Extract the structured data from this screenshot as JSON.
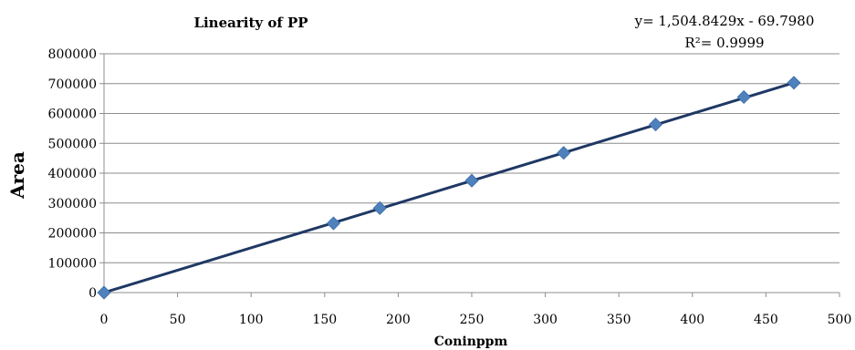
{
  "chart_data": {
    "type": "scatter",
    "title": "Linearity of PP",
    "xlabel": "Coninppm",
    "ylabel": "Area",
    "xlim": [
      0,
      500
    ],
    "ylim": [
      0,
      800000
    ],
    "x_ticks": [
      "0",
      "50",
      "100",
      "150",
      "200",
      "250",
      "300",
      "350",
      "400",
      "450",
      "500"
    ],
    "y_ticks": [
      "0",
      "100000",
      "200000",
      "300000",
      "400000",
      "500000",
      "600000",
      "700000",
      "800000"
    ],
    "grid": "horizontal",
    "series": [
      {
        "x": [
          0,
          156,
          187.5,
          250,
          312.5,
          375,
          435,
          469
        ],
        "y": [
          0,
          232000,
          283000,
          375000,
          468000,
          563000,
          655000,
          703000
        ],
        "marker": "diamond",
        "color": "#4F81BD"
      }
    ],
    "trendline": {
      "color": "#1F3864",
      "x_range": [
        0,
        469
      ],
      "equation": "y= 1,504.8429x - 69.7980",
      "r2": "R²= 0.9999"
    }
  }
}
